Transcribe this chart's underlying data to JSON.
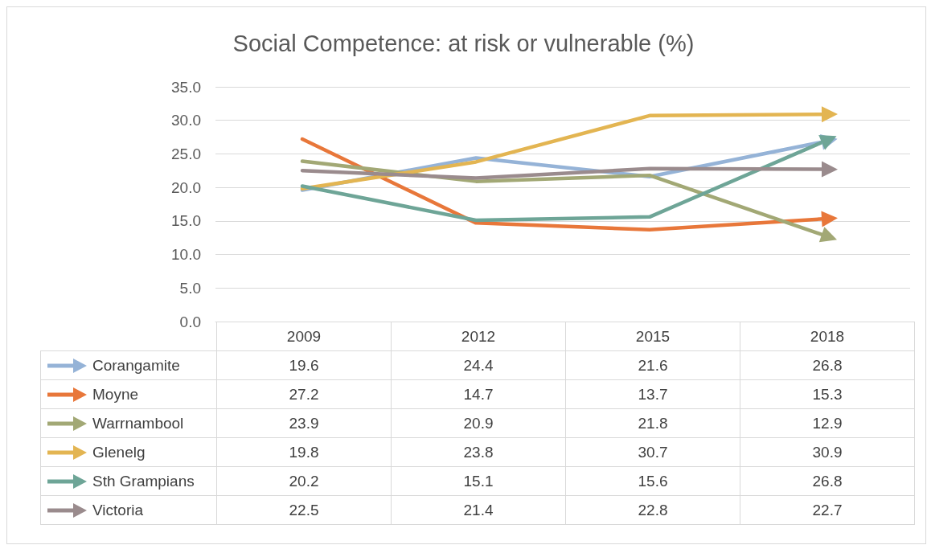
{
  "chart_data": {
    "type": "line",
    "title": "Social Competence: at risk or vulnerable (%)",
    "categories": [
      "2009",
      "2012",
      "2015",
      "2018"
    ],
    "series": [
      {
        "name": "Corangamite",
        "color": "#95b3d7",
        "values": [
          19.6,
          24.4,
          21.6,
          26.8
        ]
      },
      {
        "name": "Moyne",
        "color": "#e8773a",
        "values": [
          27.2,
          14.7,
          13.7,
          15.3
        ]
      },
      {
        "name": "Warrnambool",
        "color": "#a2a875",
        "values": [
          23.9,
          20.9,
          21.8,
          12.9
        ]
      },
      {
        "name": "Glenelg",
        "color": "#e3b552",
        "values": [
          19.8,
          23.8,
          30.7,
          30.9
        ]
      },
      {
        "name": "Sth Grampians",
        "color": "#6ea597",
        "values": [
          20.2,
          15.1,
          15.6,
          26.8
        ]
      },
      {
        "name": "Victoria",
        "color": "#9a8b8d",
        "values": [
          22.5,
          21.4,
          22.8,
          22.7
        ]
      }
    ],
    "ylim": [
      0,
      35
    ],
    "yticks": [
      {
        "value": 0,
        "label": "0.0"
      },
      {
        "value": 5,
        "label": "5.0"
      },
      {
        "value": 10,
        "label": "10.0"
      },
      {
        "value": 15,
        "label": "15.0"
      },
      {
        "value": 20,
        "label": "20.0"
      },
      {
        "value": 25,
        "label": "25.0"
      },
      {
        "value": 30,
        "label": "30.0"
      },
      {
        "value": 35,
        "label": "35.0"
      }
    ],
    "grid": "y",
    "legend": "bottom",
    "data_labels": true
  }
}
